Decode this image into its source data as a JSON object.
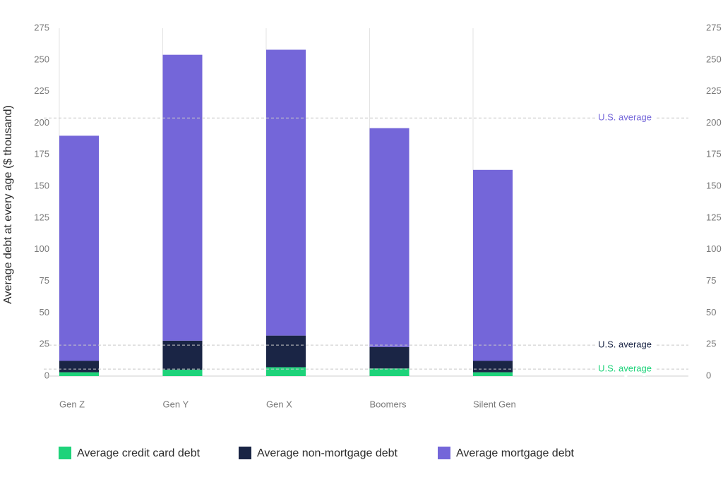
{
  "chart_data": {
    "type": "stacked_bar",
    "y_label": "Average debt at every age ($ thousand)",
    "categories": [
      "Gen Z",
      "Gen Y",
      "Gen X",
      "Boomers",
      "Silent Gen"
    ],
    "series": [
      {
        "name": "Average credit card debt",
        "color": "#1ed37a",
        "values": [
          3,
          5,
          7,
          6,
          3
        ]
      },
      {
        "name": "Average non-mortgage debt",
        "color": "#1a2545",
        "values": [
          9,
          23,
          25,
          17,
          9
        ]
      },
      {
        "name": "Average mortgage debt",
        "color": "#7466d9",
        "values": [
          178,
          226,
          226,
          173,
          151
        ]
      }
    ],
    "reference_lines": [
      {
        "label": "U.S. average",
        "value": 204,
        "color": "#7466d9"
      },
      {
        "label": "U.S. average",
        "value": 24.5,
        "color": "#1a2545"
      },
      {
        "label": "U.S. average",
        "value": 5.5,
        "color": "#1ed37a"
      }
    ],
    "ylim": [
      0,
      275
    ],
    "yticks": [
      0,
      25,
      50,
      75,
      100,
      125,
      150,
      175,
      200,
      225,
      250,
      275
    ],
    "y2lim": [
      0,
      275
    ],
    "y2ticks": [
      0,
      25,
      50,
      75,
      100,
      125,
      150,
      175,
      200,
      225,
      250,
      275
    ],
    "grid": true
  }
}
